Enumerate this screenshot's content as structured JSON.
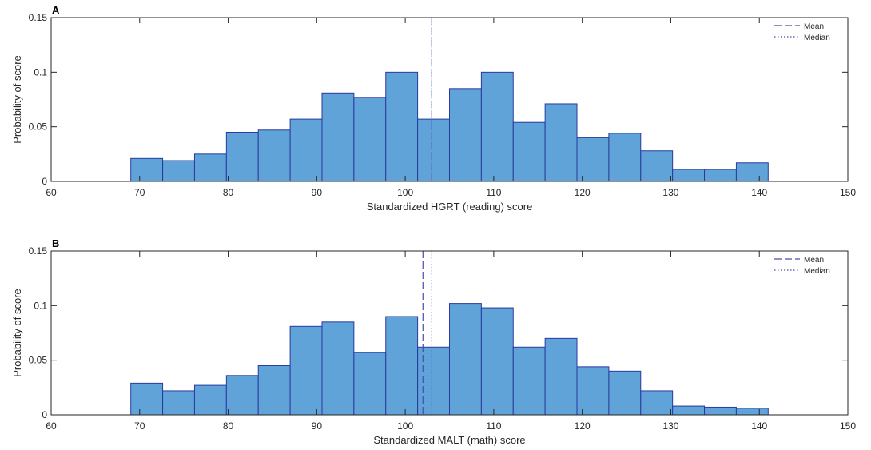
{
  "chart_data": [
    {
      "type": "bar",
      "panel_label": "A",
      "xlabel": "Standardized HGRT (reading) score",
      "ylabel": "Probability of score",
      "xlim": [
        60,
        150
      ],
      "ylim": [
        0,
        0.15
      ],
      "xticks": [
        60,
        70,
        80,
        90,
        100,
        110,
        120,
        130,
        140,
        150
      ],
      "yticks": [
        0,
        0.05,
        0.1,
        0.15
      ],
      "ytick_labels": [
        "0",
        "0.05",
        "0.1",
        "0.15"
      ],
      "bin_edges": [
        69,
        72.6,
        76.2,
        79.8,
        83.4,
        87,
        90.6,
        94.2,
        97.8,
        101.4,
        105,
        108.6,
        112.2,
        115.8,
        119.4,
        123,
        126.6,
        130.2,
        133.8,
        137.4,
        141
      ],
      "values": [
        0.021,
        0.019,
        0.025,
        0.045,
        0.047,
        0.057,
        0.081,
        0.077,
        0.1,
        0.057,
        0.085,
        0.1,
        0.054,
        0.071,
        0.04,
        0.044,
        0.028,
        0.011,
        0.011,
        0.017
      ],
      "mean": 103,
      "median": 103,
      "legend": {
        "placement": "top-right",
        "items": [
          "Mean",
          "Median"
        ]
      },
      "bar_color": "#5fa3d8",
      "edge_color": "#2a3a9e",
      "line_color": "#4a4aa8"
    },
    {
      "type": "bar",
      "panel_label": "B",
      "xlabel": "Standardized MALT (math) score",
      "ylabel": "Probability of score",
      "xlim": [
        60,
        150
      ],
      "ylim": [
        0,
        0.15
      ],
      "xticks": [
        60,
        70,
        80,
        90,
        100,
        110,
        120,
        130,
        140,
        150
      ],
      "yticks": [
        0,
        0.05,
        0.1,
        0.15
      ],
      "ytick_labels": [
        "0",
        "0.05",
        "0.1",
        "0.15"
      ],
      "bin_edges": [
        69,
        72.6,
        76.2,
        79.8,
        83.4,
        87,
        90.6,
        94.2,
        97.8,
        101.4,
        105,
        108.6,
        112.2,
        115.8,
        119.4,
        123,
        126.6,
        130.2,
        133.8,
        137.4,
        141
      ],
      "values": [
        0.029,
        0.022,
        0.027,
        0.036,
        0.045,
        0.081,
        0.085,
        0.057,
        0.09,
        0.062,
        0.102,
        0.098,
        0.062,
        0.07,
        0.044,
        0.04,
        0.022,
        0.008,
        0.007,
        0.006
      ],
      "mean": 102,
      "median": 103,
      "legend": {
        "placement": "top-right",
        "items": [
          "Mean",
          "Median"
        ]
      },
      "bar_color": "#5fa3d8",
      "edge_color": "#2a3a9e",
      "line_color": "#4a4aa8"
    }
  ]
}
